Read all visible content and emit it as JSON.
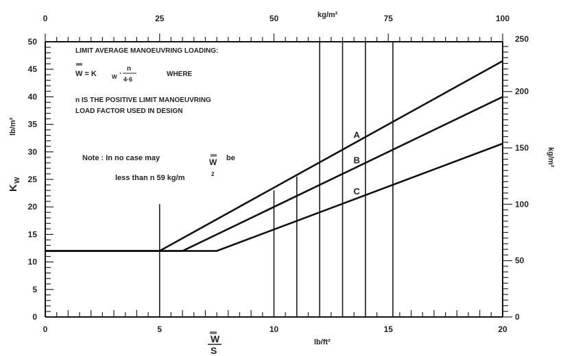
{
  "chart_data": {
    "type": "line",
    "xlabel_top": "W",
    "xlabel_bottom": "S",
    "xunit_bottom": "lb/ft²",
    "xunit_top": "kg/m²",
    "ylabel_symbol": "K",
    "ylabel_sub": "W",
    "yunit_left": "lb/m²",
    "yunit_right": "kg/m²",
    "xlim": [
      0,
      20
    ],
    "ylim": [
      0,
      50
    ],
    "x_ticks": [
      "0",
      "5",
      "10",
      "15",
      "20"
    ],
    "y_ticks": [
      "0",
      "5",
      "10",
      "15",
      "20",
      "25",
      "30",
      "35",
      "40",
      "45",
      "50"
    ],
    "top_ticks": [
      "0",
      "25",
      "50",
      "75",
      "100"
    ],
    "right_ticks": [
      "0",
      "50",
      "100",
      "150",
      "200",
      "250"
    ],
    "series": [
      {
        "name": "A",
        "x": [
          0,
          5,
          20
        ],
        "y": [
          12,
          12,
          46.5
        ]
      },
      {
        "name": "B",
        "x": [
          0,
          6,
          20
        ],
        "y": [
          12,
          12,
          40
        ]
      },
      {
        "name": "C",
        "x": [
          0,
          7.5,
          20
        ],
        "y": [
          12,
          12,
          31.5
        ]
      }
    ],
    "vertical_lines": [
      5,
      10,
      11,
      12,
      13,
      14,
      15.2
    ],
    "annotations": {
      "line1": "LIMIT AVERAGE MANOEUVRING LOADING:",
      "formula_lhs": "W = K",
      "formula_sub": "W",
      "formula_dot": "·",
      "formula_num": "n",
      "formula_den": "4·6",
      "formula_where": "WHERE",
      "n_line1": "n IS THE POSITIVE LIMIT MANOEUVRING",
      "n_line2": "LOAD FACTOR USED IN DESIGN",
      "note_line1_a": "Note : In no case may",
      "note_line1_w": "W",
      "note_line1_b": "be",
      "note_line2_a": "less than n 59 kg/m",
      "note_line2_sup": "2"
    }
  }
}
